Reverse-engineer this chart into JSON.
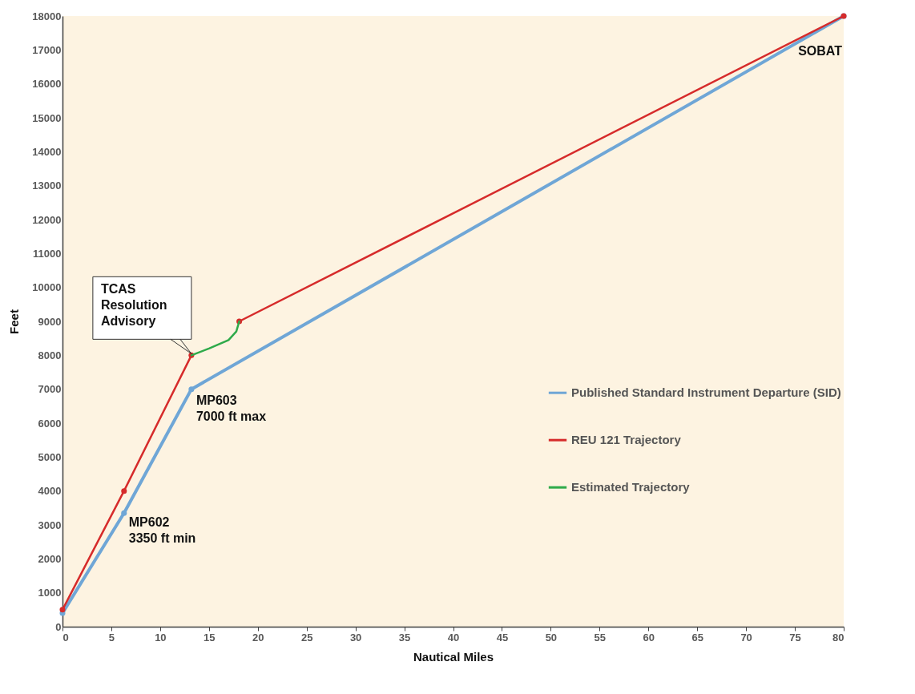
{
  "chart_data": {
    "type": "line",
    "xlabel": "Nautical Miles",
    "ylabel": "Feet",
    "xlim": [
      0,
      80
    ],
    "ylim": [
      0,
      18000
    ],
    "xticks": [
      0,
      5,
      10,
      15,
      20,
      25,
      30,
      35,
      40,
      45,
      50,
      55,
      60,
      65,
      70,
      75,
      80
    ],
    "yticks": [
      0,
      1000,
      2000,
      3000,
      4000,
      5000,
      6000,
      7000,
      8000,
      9000,
      10000,
      11000,
      12000,
      13000,
      14000,
      15000,
      16000,
      17000,
      18000
    ],
    "grid": false,
    "legend": "right",
    "marker": "circle",
    "line_style": "solid",
    "series": [
      {
        "name": "Published Standard Instrument Departure (SID)",
        "color": "#6fa6d6",
        "x": [
          0,
          6.3,
          13.2,
          80
        ],
        "values": [
          400,
          3350,
          7000,
          18000
        ]
      },
      {
        "name": "REU 121 Trajectory",
        "color": "#d62b2b",
        "x": [
          0,
          6.3,
          13.2,
          null,
          18.1,
          80
        ],
        "values": [
          500,
          4000,
          8000,
          null,
          9000,
          18000
        ]
      },
      {
        "name": "Estimated Trajectory",
        "color": "#2eaa4a",
        "marker": "none",
        "x": [
          13.2,
          15,
          17,
          17.8,
          18.1
        ],
        "values": [
          8000,
          8200,
          8450,
          8700,
          9000
        ]
      }
    ],
    "annotations": [
      {
        "text": "TCAS\nResolution\nAdvisory",
        "x": 13.2,
        "y": 8000
      },
      {
        "text": "MP602\n3350 ft min",
        "x": 6.3,
        "y": 3350
      },
      {
        "text": "MP603\n7000 ft max",
        "x": 13.2,
        "y": 7000
      },
      {
        "text": "SOBAT",
        "x": 80,
        "y": 18000
      }
    ]
  }
}
